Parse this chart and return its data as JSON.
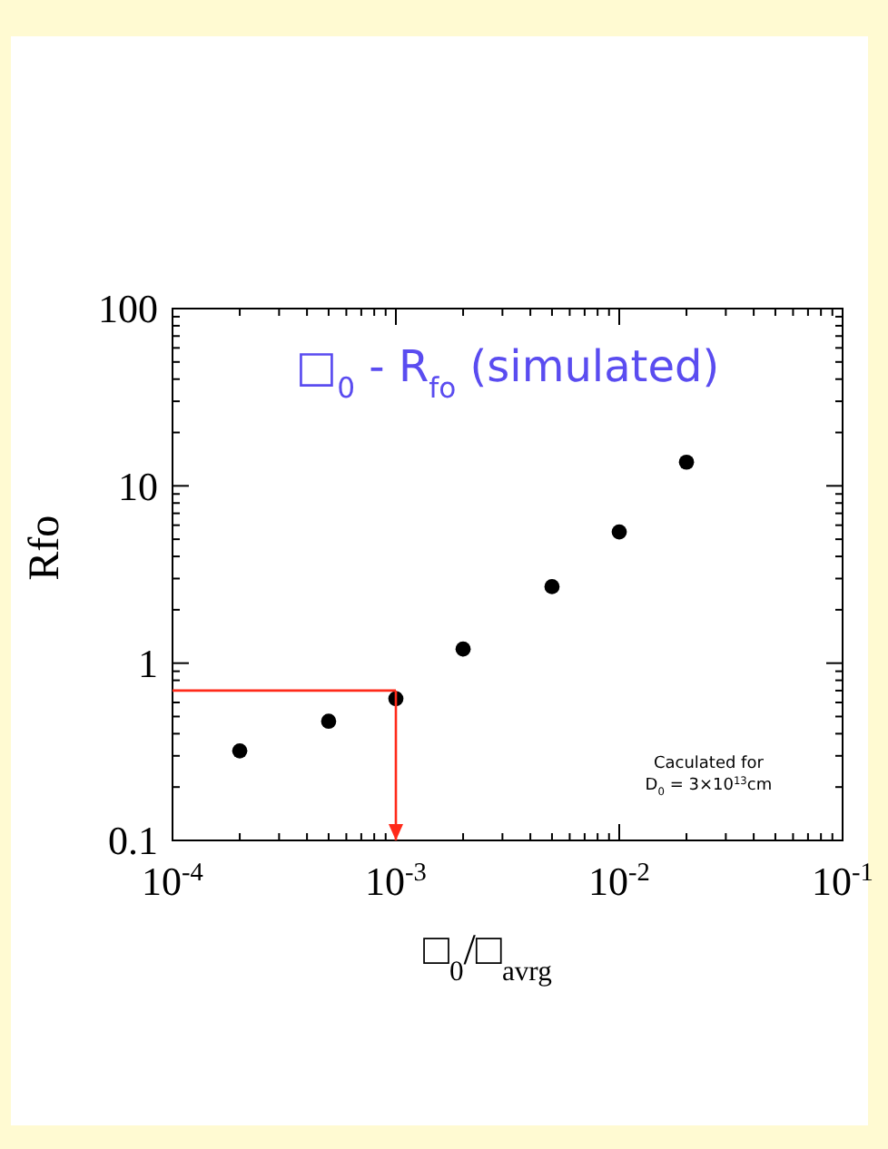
{
  "chart_data": {
    "type": "scatter",
    "title": "□$_{0}$ - R$_{fo}$ (simulated)",
    "xlabel": "□$_{0}$/□$_{avrg}$",
    "ylabel": "Rfo",
    "log": "xy",
    "marker": "circle",
    "grid": false,
    "xlim": [
      0.0001,
      0.1
    ],
    "ylim": [
      0.1,
      100
    ],
    "xticks": [
      {
        "value": 0.0001,
        "label": "10$^{-4}$"
      },
      {
        "value": 0.0002,
        "label": null
      },
      {
        "value": 0.0003,
        "label": null
      },
      {
        "value": 0.0004,
        "label": null
      },
      {
        "value": 0.0005,
        "label": null
      },
      {
        "value": 0.0006,
        "label": null
      },
      {
        "value": 0.0007,
        "label": null
      },
      {
        "value": 0.0008,
        "label": null
      },
      {
        "value": 0.0009,
        "label": null
      },
      {
        "value": 0.001,
        "label": "10$^{-3}$"
      },
      {
        "value": 0.002,
        "label": null
      },
      {
        "value": 0.003,
        "label": null
      },
      {
        "value": 0.004,
        "label": null
      },
      {
        "value": 0.005,
        "label": null
      },
      {
        "value": 0.006,
        "label": null
      },
      {
        "value": 0.007,
        "label": null
      },
      {
        "value": 0.008,
        "label": null
      },
      {
        "value": 0.009,
        "label": null
      },
      {
        "value": 0.01,
        "label": "10$^{-2}$"
      },
      {
        "value": 0.02,
        "label": null
      },
      {
        "value": 0.03,
        "label": null
      },
      {
        "value": 0.04,
        "label": null
      },
      {
        "value": 0.05,
        "label": null
      },
      {
        "value": 0.06,
        "label": null
      },
      {
        "value": 0.07,
        "label": null
      },
      {
        "value": 0.08,
        "label": null
      },
      {
        "value": 0.09,
        "label": null
      },
      {
        "value": 0.1,
        "label": "10$^{-1}$"
      }
    ],
    "yticks": [
      0.1,
      {
        "value": 0.2,
        "label": null
      },
      {
        "value": 0.3,
        "label": null
      },
      {
        "value": 0.4,
        "label": null
      },
      {
        "value": 0.5,
        "label": null
      },
      {
        "value": 0.6,
        "label": null
      },
      {
        "value": 0.7,
        "label": null
      },
      {
        "value": 0.8,
        "label": null
      },
      {
        "value": 0.9,
        "label": null
      },
      1,
      {
        "value": 2,
        "label": null
      },
      {
        "value": 3,
        "label": null
      },
      {
        "value": 4,
        "label": null
      },
      {
        "value": 5,
        "label": null
      },
      {
        "value": 6,
        "label": null
      },
      {
        "value": 7,
        "label": null
      },
      {
        "value": 8,
        "label": null
      },
      {
        "value": 9,
        "label": null
      },
      10,
      {
        "value": 20,
        "label": null
      },
      {
        "value": 30,
        "label": null
      },
      {
        "value": 40,
        "label": null
      },
      {
        "value": 50,
        "label": null
      },
      {
        "value": 60,
        "label": null
      },
      {
        "value": 70,
        "label": null
      },
      {
        "value": 80,
        "label": null
      },
      {
        "value": 90,
        "label": null
      },
      100
    ],
    "series": [
      {
        "type": "scatter",
        "color": "#000000",
        "x": [
          0.0002,
          0.0005,
          0.001,
          0.002,
          0.005,
          0.01,
          0.02
        ],
        "values": [
          0.32,
          0.47,
          0.63,
          1.2,
          2.7,
          5.5,
          13.6
        ]
      }
    ],
    "ref_lines": [
      {
        "axis": "y",
        "value": 0.7,
        "color": "#ff2a1a"
      },
      {
        "axis": "x",
        "value": 0.001,
        "color": "#ff2a1a"
      }
    ],
    "annotations": [
      "Caculated for",
      "D$_{0}$ = 3×10$^{13}$cm"
    ]
  }
}
